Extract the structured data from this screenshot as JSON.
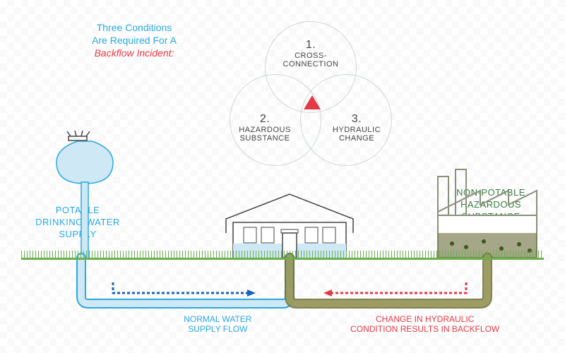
{
  "title": {
    "line1": "Three Conditions",
    "line2": "Are Required For A",
    "line3": "Backflow Incident:"
  },
  "colors": {
    "red": "#e63946",
    "teal": "#2aa9e0",
    "green": "#3a7d44",
    "grey": "#444",
    "lightblue": "#cfe8f5",
    "circle": "#cdd6d9",
    "factory": "#8a8f7a",
    "sludge": "#6b6b3a"
  },
  "venn": {
    "c1": {
      "num": "1.",
      "label": "CROSS-\nCONNECTION"
    },
    "c2": {
      "num": "2.",
      "label": "HAZARDOUS\nSUBSTANCE"
    },
    "c3": {
      "num": "3.",
      "label": "HYDRAULIC\nCHANGE"
    }
  },
  "leftLabel": "POTABLE\nDRINKING WATER\nSUPPLY",
  "rightLabel": "NON-POTABLE\nHAZARDOUS\nSUBSTANCE",
  "flowLabels": {
    "normal": "NORMAL WATER\nSUPPLY FLOW",
    "backflow": "CHANGE IN HYDRAULIC\nCONDITION RESULTS IN BACKFLOW"
  }
}
